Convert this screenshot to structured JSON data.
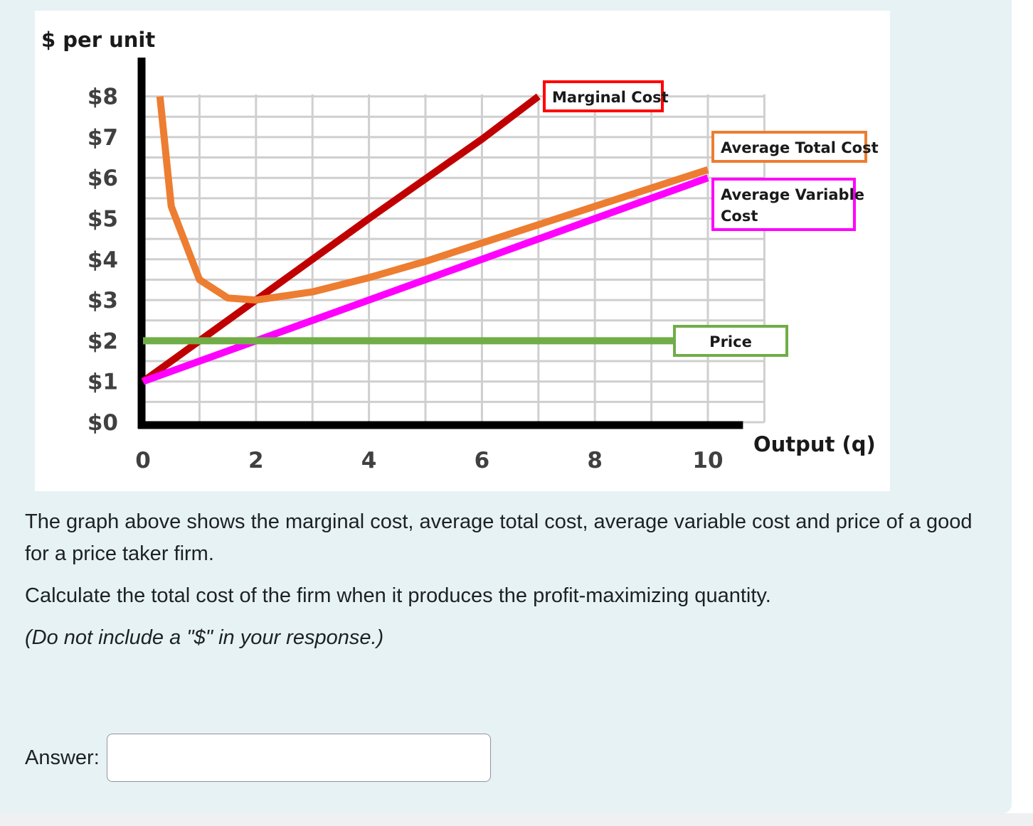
{
  "question": {
    "intro": "The graph above shows the marginal cost, average total cost, average variable cost and price of a good for a price taker firm.",
    "task": "Calculate the total cost of the firm when it produces the profit-maximizing quantity.",
    "note": "(Do not include a \"$\" in your response.)",
    "answer_label": "Answer:",
    "answer_value": ""
  },
  "chart_data": {
    "type": "line",
    "ylabel": "$ per unit",
    "xlabel": "Output (q)",
    "xlim": [
      0,
      11
    ],
    "ylim": [
      0,
      8
    ],
    "x_ticks": [
      0,
      2,
      4,
      6,
      8,
      10
    ],
    "x_tick_labels": [
      "0",
      "2",
      "4",
      "6",
      "8",
      "10"
    ],
    "y_ticks": [
      0,
      1,
      2,
      3,
      4,
      5,
      6,
      7,
      8
    ],
    "y_tick_labels": [
      "$0",
      "$1",
      "$2",
      "$3",
      "$4",
      "$5",
      "$6",
      "$7",
      "$8"
    ],
    "grid": true,
    "series": [
      {
        "name": "Marginal Cost",
        "color": "#c00000",
        "label_border": "#ff0000",
        "points": [
          [
            0,
            1
          ],
          [
            2,
            3
          ],
          [
            4,
            5
          ],
          [
            6,
            6.95
          ],
          [
            7,
            8
          ]
        ]
      },
      {
        "name": "Average Total Cost",
        "color": "#ed7d31",
        "label_border": "#ed7d31",
        "points": [
          [
            0.3,
            8
          ],
          [
            0.5,
            5.3
          ],
          [
            1,
            3.5
          ],
          [
            1.5,
            3.05
          ],
          [
            2,
            3
          ],
          [
            3,
            3.2
          ],
          [
            4,
            3.55
          ],
          [
            5,
            3.95
          ],
          [
            6,
            4.4
          ],
          [
            7,
            4.85
          ],
          [
            8,
            5.3
          ],
          [
            9,
            5.75
          ],
          [
            10,
            6.2
          ]
        ]
      },
      {
        "name": "Average Variable Cost",
        "color": "#ff00ff",
        "label_border": "#ff00ff",
        "points": [
          [
            0,
            1
          ],
          [
            2,
            2
          ],
          [
            4,
            3
          ],
          [
            6,
            4
          ],
          [
            8,
            5
          ],
          [
            10,
            6
          ]
        ]
      },
      {
        "name": "Price",
        "color": "#70ad47",
        "label_border": "#70ad47",
        "points": [
          [
            0,
            2
          ],
          [
            9.4,
            2
          ]
        ]
      }
    ]
  }
}
